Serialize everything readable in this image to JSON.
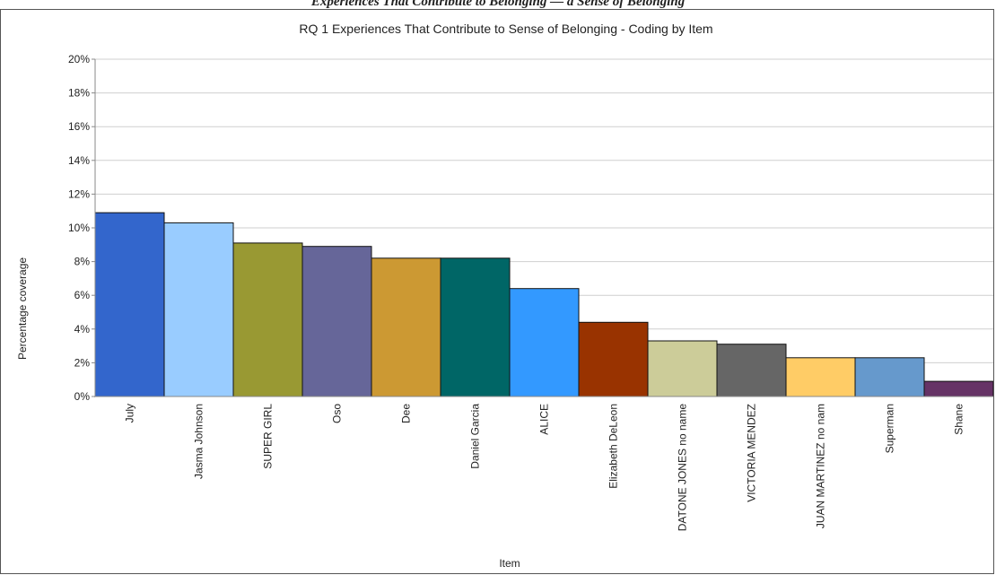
{
  "top_caption": "Experiences That Contribute to Belonging — a Sense of Belonging",
  "chart_data": {
    "type": "bar",
    "title": "RQ 1 Experiences That Contribute to Sense of Belonging - Coding by Item",
    "xlabel": "Item",
    "ylabel": "Percentage coverage",
    "ylim": [
      0,
      20
    ],
    "yticks": [
      "0%",
      "2%",
      "4%",
      "6%",
      "8%",
      "10%",
      "12%",
      "14%",
      "16%",
      "18%",
      "20%"
    ],
    "grid": true,
    "legend": "none",
    "categories": [
      "July",
      "Jasma Johnson",
      "SUPER GIRL",
      "Oso",
      "Dee",
      "Daniel Garcia",
      "ALICE",
      "Elizabeth DeLeon",
      "DATONE JONES no name",
      "VICTORIA MENDEZ",
      "JUAN MARTINEZ no nam",
      "Superman",
      "Shane"
    ],
    "values": [
      10.9,
      10.3,
      9.1,
      8.9,
      8.2,
      8.2,
      6.4,
      4.4,
      3.3,
      3.1,
      2.3,
      2.3,
      0.9
    ],
    "colors": [
      "#3366cc",
      "#99ccff",
      "#999933",
      "#666699",
      "#cc9933",
      "#006666",
      "#3399ff",
      "#993300",
      "#cccc99",
      "#666666",
      "#ffcc66",
      "#6699cc",
      "#663366"
    ]
  }
}
